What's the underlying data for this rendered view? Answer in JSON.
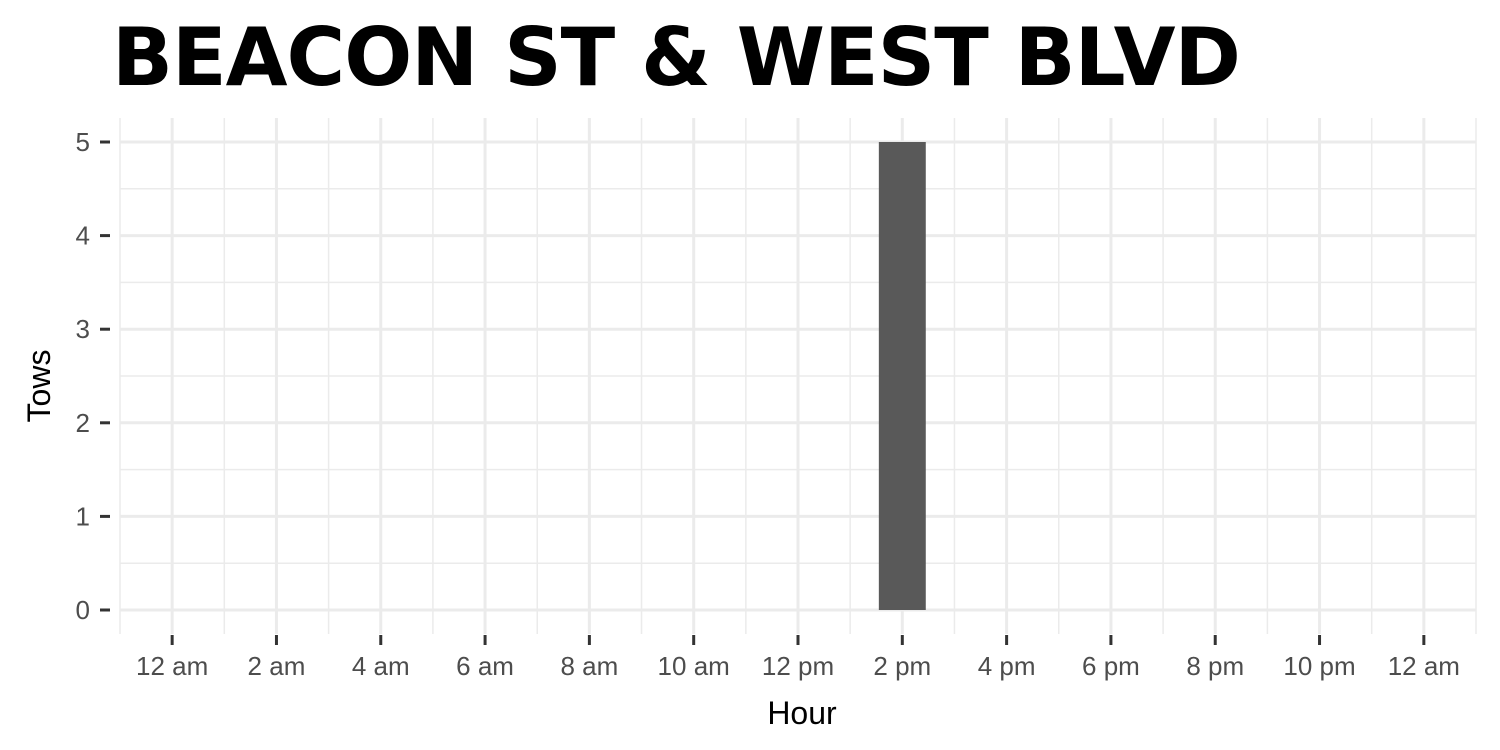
{
  "chart_data": {
    "type": "bar",
    "title": "BEACON ST & WEST BLVD",
    "xlabel": "Hour",
    "ylabel": "Tows",
    "x_tick_labels": [
      "12 am",
      "2 am",
      "4 am",
      "6 am",
      "8 am",
      "10 am",
      "12 pm",
      "2 pm",
      "4 pm",
      "6 pm",
      "8 pm",
      "10 pm",
      "12 am"
    ],
    "y_tick_labels": [
      "0",
      "1",
      "2",
      "3",
      "4",
      "5"
    ],
    "xlim": [
      -1,
      25
    ],
    "ylim": [
      0,
      5
    ],
    "grid": true,
    "legend": "none",
    "bar_color": "#595959",
    "series": [
      {
        "values": [
          {
            "hour": 14,
            "tows": 5
          }
        ]
      }
    ]
  }
}
